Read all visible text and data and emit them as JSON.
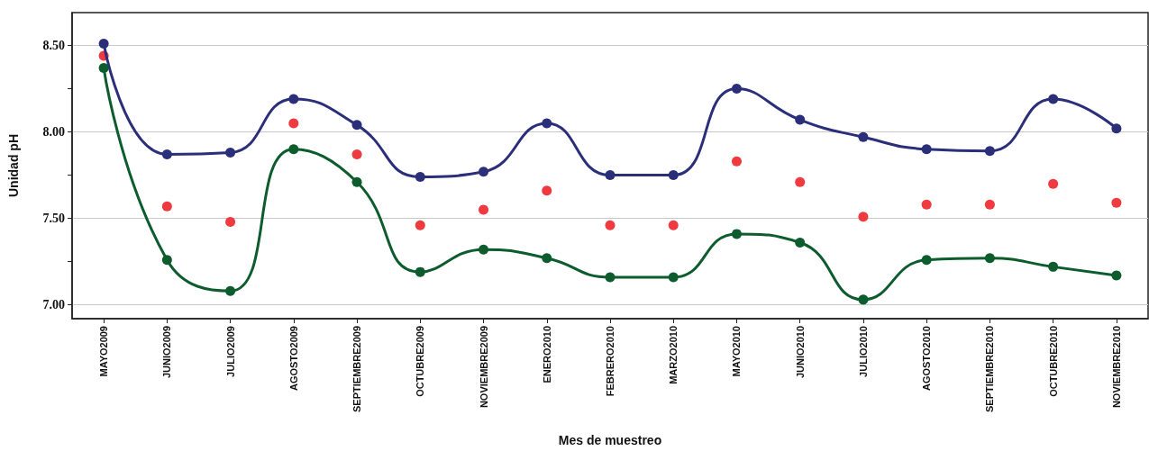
{
  "chart_data": {
    "type": "line",
    "xlabel": "Mes de muestreo",
    "ylabel": "Unidad pH",
    "categories": [
      "MAYO2009",
      "JUNIO2009",
      "JULIO2009",
      "AGOSTO2009",
      "SEPTIEMBRE2009",
      "OCTUBRE2009",
      "NOVIEMBRE2009",
      "ENERO2010",
      "FEBRERO2010",
      "MARZO2010",
      "MAYO2010",
      "JUNIO2010",
      "JULIO2010",
      "AGOSTO2010",
      "SEPTIEMBRE2010",
      "OCTUBRE2010",
      "NOVIEMBRE2010"
    ],
    "series": [
      {
        "color": "#2b2f7a",
        "values": [
          8.51,
          7.87,
          7.88,
          8.19,
          8.04,
          7.74,
          7.77,
          8.05,
          7.75,
          7.75,
          8.25,
          8.07,
          7.97,
          7.9,
          7.89,
          8.19,
          8.02
        ]
      },
      {
        "type": "scatter",
        "color": "#ef3a3f",
        "values": [
          8.44,
          7.57,
          7.48,
          8.05,
          7.87,
          7.46,
          7.55,
          7.66,
          7.46,
          7.46,
          7.83,
          7.71,
          7.51,
          7.58,
          7.58,
          7.7,
          7.59
        ]
      },
      {
        "color": "#0d5c2e",
        "values": [
          8.37,
          7.26,
          7.08,
          7.9,
          7.71,
          7.19,
          7.32,
          7.27,
          7.16,
          7.16,
          7.41,
          7.36,
          7.03,
          7.26,
          7.27,
          7.22,
          7.17
        ]
      }
    ],
    "ylim": [
      6.92,
      8.69
    ],
    "yticks": [
      {
        "value": 7.0,
        "label": "7.00"
      },
      {
        "value": 7.25,
        "label": null
      },
      {
        "value": 7.5,
        "label": "7.50"
      },
      {
        "value": 7.75,
        "label": null
      },
      {
        "value": 8.0,
        "label": "8.00"
      },
      {
        "value": 8.25,
        "label": null
      },
      {
        "value": 8.5,
        "label": "8.50"
      }
    ],
    "grid": "y",
    "marker": "circle"
  }
}
